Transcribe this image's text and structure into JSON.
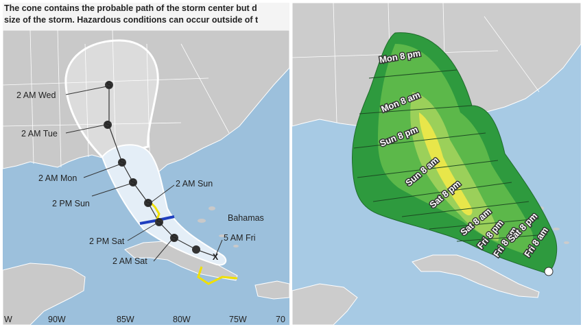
{
  "left_panel": {
    "banner_lines": [
      "The cone contains the probable path of the storm center but d",
      "size of the storm. Hazardous conditions can occur outside of t"
    ],
    "track_points": [
      {
        "label": "2 AM Wed",
        "symbol": "S"
      },
      {
        "label": "2 AM Tue",
        "symbol": "S"
      },
      {
        "label": "2 AM Mon",
        "symbol": "S"
      },
      {
        "label": "2 PM Sun",
        "symbol": "S"
      },
      {
        "label": "2 AM Sun",
        "symbol": "S"
      },
      {
        "label": "2 PM Sat",
        "symbol": "S"
      },
      {
        "label": "2 AM Sat",
        "symbol": "S"
      },
      {
        "label": "5 AM Fri",
        "symbol": "X"
      }
    ],
    "longitude_labels": [
      "W",
      "90W",
      "85W",
      "80W",
      "75W",
      "70"
    ],
    "place_label": "Bahamas",
    "colors": {
      "ocean": "#9cc0dc",
      "land": "#c9c9c9",
      "cone_solid": "#e4eef7",
      "warning_yellow": "#f0e000",
      "warning_blue": "#1f3fbf"
    }
  },
  "right_panel": {
    "time_labels": [
      "Mon 8 pm",
      "Mon 8 am",
      "Sun 8 pm",
      "Sun 8 am",
      "Sat 8 pm",
      "Sat 8 am",
      "Fri 8 pm",
      "Fri 8 am",
      "Sat 8 pm",
      "Fri 8 am"
    ],
    "colors": {
      "ocean": "#a7cae4",
      "land": "#cccccc",
      "outer_green": "#2e9a3e",
      "mid_green": "#5cb84a",
      "light_green": "#9bd05a",
      "yellow": "#e8e64a"
    }
  }
}
